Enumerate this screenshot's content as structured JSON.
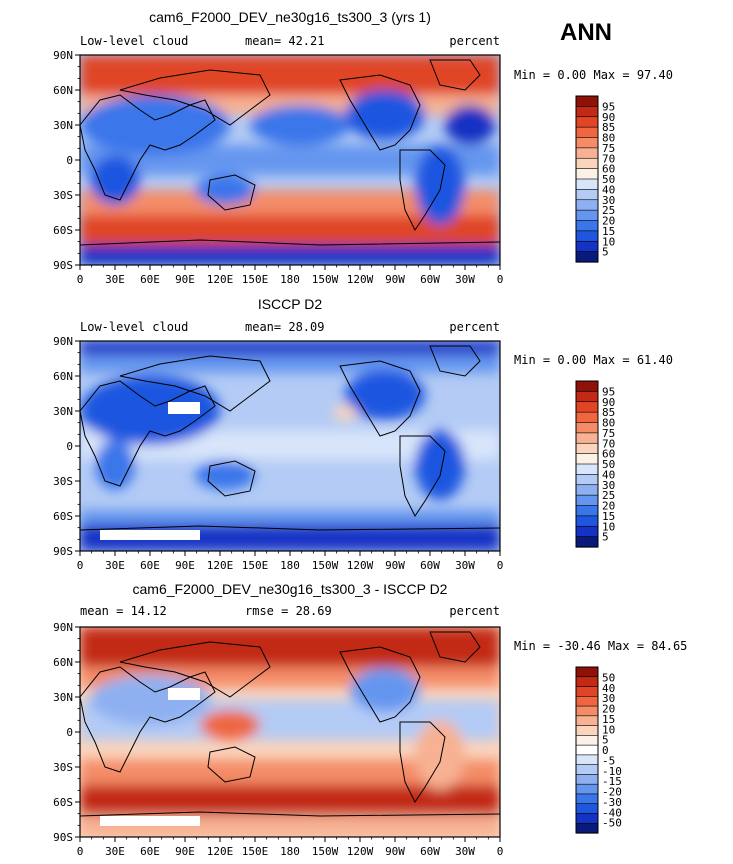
{
  "season": "ANN",
  "palette": {
    "seq": [
      "#0a1a7a",
      "#1433c4",
      "#1f56e0",
      "#3a76ea",
      "#6596ef",
      "#8eb0f1",
      "#b3cbf5",
      "#d8e5fa",
      "#fbf1e6",
      "#fad4bc",
      "#f7b193",
      "#f48c68",
      "#ef6640",
      "#e04526",
      "#c22a15",
      "#8e1208"
    ],
    "div": [
      "#0a1a7a",
      "#1433c4",
      "#1f56e0",
      "#3a76ea",
      "#6596ef",
      "#8eb0f1",
      "#b3cbf5",
      "#d8e5fa",
      "#ffffff",
      "#fbf1e6",
      "#fad4bc",
      "#f7b193",
      "#f48c68",
      "#ef6640",
      "#e04526",
      "#c22a15",
      "#8e1208"
    ]
  },
  "chart_data": [
    {
      "type": "heatmap",
      "title": "cam6_F2000_DEV_ne30g16_ts300_3 (yrs 1)",
      "left_label": "Low-level cloud",
      "center_label": "mean=  42.21",
      "right_label": "percent",
      "minmax": "Min =    0.00 Max =  97.40",
      "x_ticks": [
        "0",
        "30E",
        "60E",
        "90E",
        "120E",
        "150E",
        "180",
        "150W",
        "120W",
        "90W",
        "60W",
        "30W",
        "0"
      ],
      "y_ticks": [
        "90N",
        "60N",
        "30N",
        "0",
        "30S",
        "60S",
        "90S"
      ],
      "colorbar_levels": [
        "95",
        "90",
        "85",
        "80",
        "75",
        "70",
        "60",
        "50",
        "40",
        "30",
        "25",
        "20",
        "15",
        "10",
        "5"
      ]
    },
    {
      "type": "heatmap",
      "title": "ISCCP D2",
      "left_label": "Low-level cloud",
      "center_label": "mean=  28.09",
      "right_label": "percent",
      "minmax": "Min =    0.00 Max =  61.40",
      "x_ticks": [
        "0",
        "30E",
        "60E",
        "90E",
        "120E",
        "150E",
        "180",
        "150W",
        "120W",
        "90W",
        "60W",
        "30W",
        "0"
      ],
      "y_ticks": [
        "90N",
        "60N",
        "30N",
        "0",
        "30S",
        "60S",
        "90S"
      ],
      "colorbar_levels": [
        "95",
        "90",
        "85",
        "80",
        "75",
        "70",
        "60",
        "50",
        "40",
        "30",
        "25",
        "20",
        "15",
        "10",
        "5"
      ]
    },
    {
      "type": "heatmap",
      "title": "cam6_F2000_DEV_ne30g16_ts300_3 - ISCCP D2",
      "left_label": "mean =   14.12",
      "center_label": "rmse =   28.69",
      "right_label": "percent",
      "minmax": "Min = -30.46 Max =  84.65",
      "x_ticks": [
        "0",
        "30E",
        "60E",
        "90E",
        "120E",
        "150E",
        "180",
        "150W",
        "120W",
        "90W",
        "60W",
        "30W",
        "0"
      ],
      "y_ticks": [
        "90N",
        "60N",
        "30N",
        "0",
        "30S",
        "60S",
        "90S"
      ],
      "colorbar_levels": [
        "50",
        "40",
        "30",
        "20",
        "15",
        "10",
        "5",
        "0",
        "-5",
        "-10",
        "-15",
        "-20",
        "-30",
        "-40",
        "-50"
      ]
    }
  ]
}
